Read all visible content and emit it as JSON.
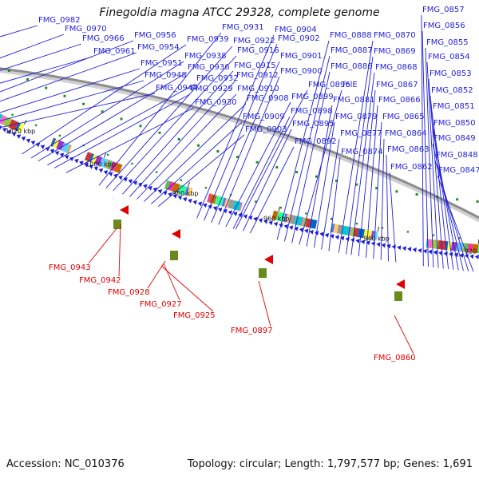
{
  "title": "Finegoldia magna ATCC 29328, complete genome",
  "footer": {
    "accession": "Accession: NC_010376",
    "topology": "Topology: circular; Length: 1,797,577 bp; Genes: 1,691"
  },
  "colors": {
    "forward_gene": "#1f1fd6",
    "reverse_gene": "#e00000",
    "backbone": "#8c8c8c",
    "tick": "#1e8c1e"
  },
  "ticks": [
    "1060 kbp",
    "1040 kbp",
    "1020 kbp",
    "1000 kbp",
    "980 kbp",
    "960 kbp",
    "940 kbp",
    "920 kbp"
  ],
  "blue_labels": [
    "FMG_0982",
    "FMG_0970",
    "FMG_0966",
    "FMG_0961",
    "FMG_0956",
    "FMG_0954",
    "FMG_0951",
    "FMG_0948",
    "FMG_0944",
    "FMG_0939",
    "FMG_0938",
    "FMG_0936",
    "FMG_0932",
    "FMG_0929",
    "FMG_0930",
    "FMG_0931",
    "FMG_0922",
    "FMG_0916",
    "FMG_0915",
    "FMG_0912",
    "FMG_0910",
    "FMG_0908",
    "FMG_0909",
    "FMG_0903",
    "FMG_0904",
    "FMG_0902",
    "FMG_0901",
    "FMG_0900",
    "FMG_0899",
    "FMG_0898",
    "FMG_0895",
    "FMG_0892",
    "FMG_0896",
    "FMG_0888",
    "FMG_0887",
    "FMG_0886",
    "folE",
    "FMG_0881",
    "FMG_0879",
    "FMG_0877",
    "FMG_0874",
    "FMG_0870",
    "FMG_0869",
    "FMG_0868",
    "FMG_0867",
    "FMG_0866",
    "FMG_0865",
    "FMG_0864",
    "FMG_0863",
    "FMG_0862",
    "FMG_0857",
    "FMG_0856",
    "FMG_0855",
    "FMG_0854",
    "FMG_0853",
    "FMG_0852",
    "FMG_0851",
    "FMG_0850",
    "FMG_0849",
    "FMG_0848",
    "FMG_0847"
  ],
  "red_labels": [
    "FMG_0943",
    "FMG_0942",
    "FMG_0928",
    "FMG_0927",
    "FMG_0925",
    "FMG_0897",
    "FMG_0860"
  ]
}
